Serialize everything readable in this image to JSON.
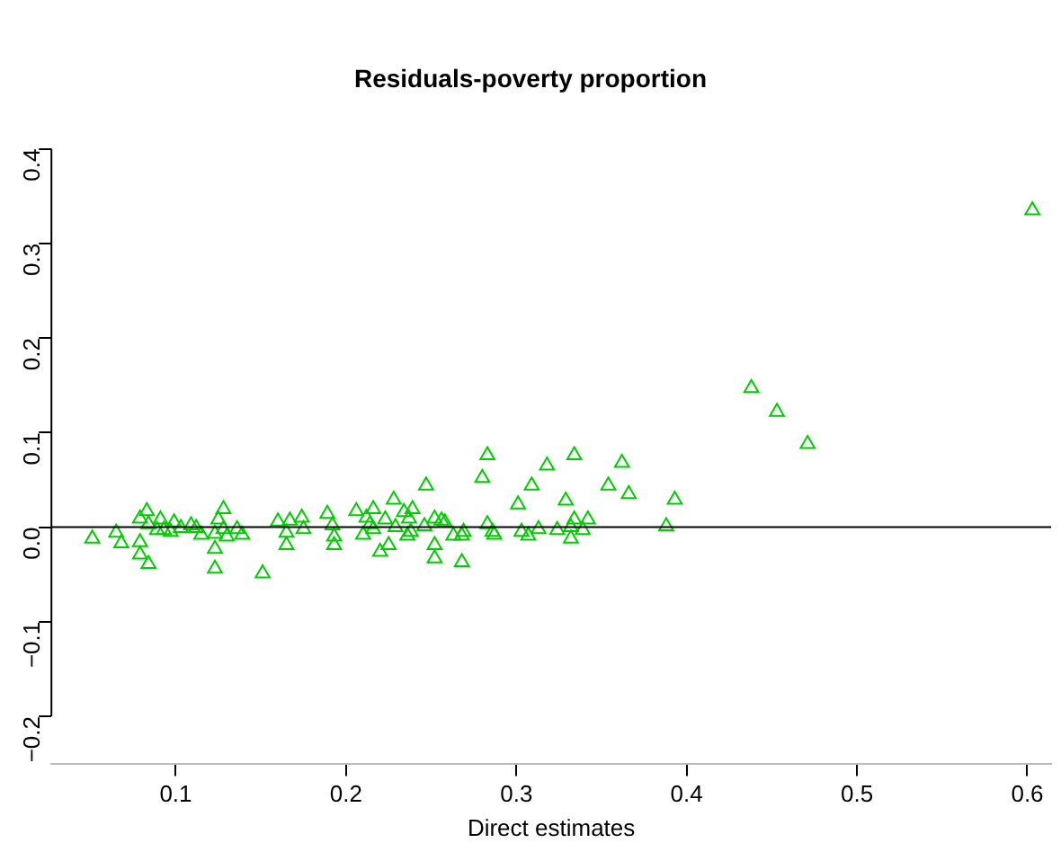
{
  "chart_data": {
    "type": "scatter",
    "title": "Residuals-poverty proportion",
    "xlabel": "Direct estimates",
    "x": [
      0.051,
      0.065,
      0.068,
      0.079,
      0.079,
      0.079,
      0.083,
      0.084,
      0.084,
      0.089,
      0.091,
      0.093,
      0.097,
      0.099,
      0.103,
      0.109,
      0.112,
      0.115,
      0.123,
      0.123,
      0.123,
      0.125,
      0.128,
      0.128,
      0.13,
      0.136,
      0.139,
      0.151,
      0.16,
      0.165,
      0.165,
      0.167,
      0.174,
      0.175,
      0.189,
      0.192,
      0.193,
      0.193,
      0.206,
      0.21,
      0.212,
      0.214,
      0.216,
      0.216,
      0.223,
      0.225,
      0.22,
      0.228,
      0.229,
      0.234,
      0.236,
      0.238,
      0.239,
      0.237,
      0.246,
      0.247,
      0.252,
      0.252,
      0.252,
      0.256,
      0.258,
      0.263,
      0.268,
      0.268,
      0.269,
      0.28,
      0.283,
      0.283,
      0.286,
      0.287,
      0.301,
      0.303,
      0.307,
      0.309,
      0.313,
      0.318,
      0.324,
      0.329,
      0.332,
      0.332,
      0.334,
      0.334,
      0.339,
      0.342,
      0.354,
      0.362,
      0.366,
      0.388,
      0.393,
      0.438,
      0.453,
      0.471,
      0.603
    ],
    "series": [
      {
        "color": "#00cd00",
        "values": [
          -0.012,
          -0.006,
          -0.017,
          0.009,
          -0.016,
          -0.029,
          0.017,
          0.003,
          -0.039,
          -0.003,
          0.008,
          -0.003,
          -0.005,
          0.005,
          -0.001,
          0.002,
          -0.001,
          -0.008,
          -0.007,
          -0.023,
          -0.044,
          0.008,
          0.019,
          -0.002,
          -0.01,
          -0.002,
          -0.008,
          -0.049,
          0.006,
          -0.006,
          -0.019,
          0.007,
          0.01,
          -0.002,
          0.014,
          0.002,
          -0.01,
          -0.019,
          0.017,
          -0.008,
          0.01,
          0.003,
          0.019,
          -0.002,
          0.008,
          -0.019,
          -0.026,
          0.029,
          0.0,
          0.016,
          -0.009,
          -0.005,
          0.019,
          0.009,
          0.001,
          0.044,
          0.009,
          -0.019,
          -0.033,
          0.007,
          0.005,
          -0.009,
          -0.009,
          -0.037,
          -0.005,
          0.052,
          0.076,
          0.003,
          -0.005,
          -0.008,
          0.024,
          -0.005,
          -0.009,
          0.044,
          -0.002,
          0.065,
          -0.003,
          0.028,
          0.0,
          -0.012,
          0.076,
          0.008,
          -0.003,
          0.008,
          0.044,
          0.068,
          0.035,
          0.001,
          0.029,
          0.147,
          0.122,
          0.088,
          0.335
        ]
      }
    ],
    "marker": "triangle",
    "grid": false,
    "legend": false,
    "xlim": [
      0.027,
      0.614
    ],
    "xticks": [
      0.1,
      0.2,
      0.3,
      0.4,
      0.5,
      0.6
    ],
    "ylim": [
      -0.25,
      0.4
    ],
    "yticks": [
      {
        "value": -0.2,
        "label": "−0.2"
      },
      {
        "value": -0.1,
        "label": "−0.1"
      },
      {
        "value": 0,
        "label": "0.0"
      },
      0.1,
      0.2,
      0.3,
      0.4
    ],
    "ref_lines": [
      {
        "axis": "y",
        "value": 0,
        "color": "#000000"
      }
    ]
  }
}
